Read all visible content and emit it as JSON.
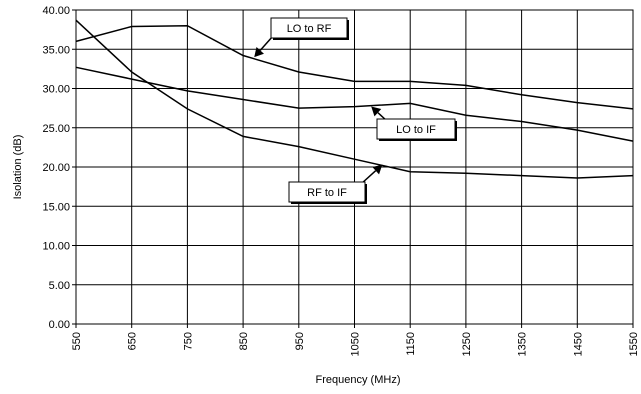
{
  "chart_data": {
    "type": "line",
    "title": "",
    "xlabel": "Frequency (MHz)",
    "ylabel": "Isolation (dB)",
    "x": [
      550,
      650,
      750,
      850,
      950,
      1050,
      1150,
      1250,
      1350,
      1450,
      1550
    ],
    "x_tick_labels": [
      "550",
      "650",
      "750",
      "850",
      "950",
      "1050",
      "1150",
      "1250",
      "1350",
      "1450",
      "1550"
    ],
    "y_tick_labels": [
      "0.00",
      "5.00",
      "10.00",
      "15.00",
      "20.00",
      "25.00",
      "30.00",
      "35.00",
      "40.00"
    ],
    "xlim": [
      550,
      1550
    ],
    "ylim": [
      0,
      40
    ],
    "grid": true,
    "series": [
      {
        "name": "LO to RF",
        "values": [
          36.0,
          37.9,
          38.0,
          34.2,
          32.1,
          30.9,
          30.9,
          30.4,
          29.2,
          28.2,
          27.4
        ]
      },
      {
        "name": "LO to IF",
        "values": [
          32.7,
          31.2,
          29.7,
          28.6,
          27.5,
          27.7,
          28.1,
          26.6,
          25.8,
          24.7,
          23.3
        ]
      },
      {
        "name": "RF to IF",
        "values": [
          38.7,
          32.1,
          27.4,
          23.9,
          22.6,
          21.0,
          19.4,
          19.2,
          18.9,
          18.6,
          18.9
        ]
      }
    ],
    "annotations": [
      {
        "label": "LO to RF",
        "arrow_to": [
          870,
          34.0
        ]
      },
      {
        "label": "LO to IF",
        "arrow_to": [
          1080,
          27.7
        ]
      },
      {
        "label": "RF to IF",
        "arrow_to": [
          1100,
          20.3
        ]
      }
    ]
  }
}
